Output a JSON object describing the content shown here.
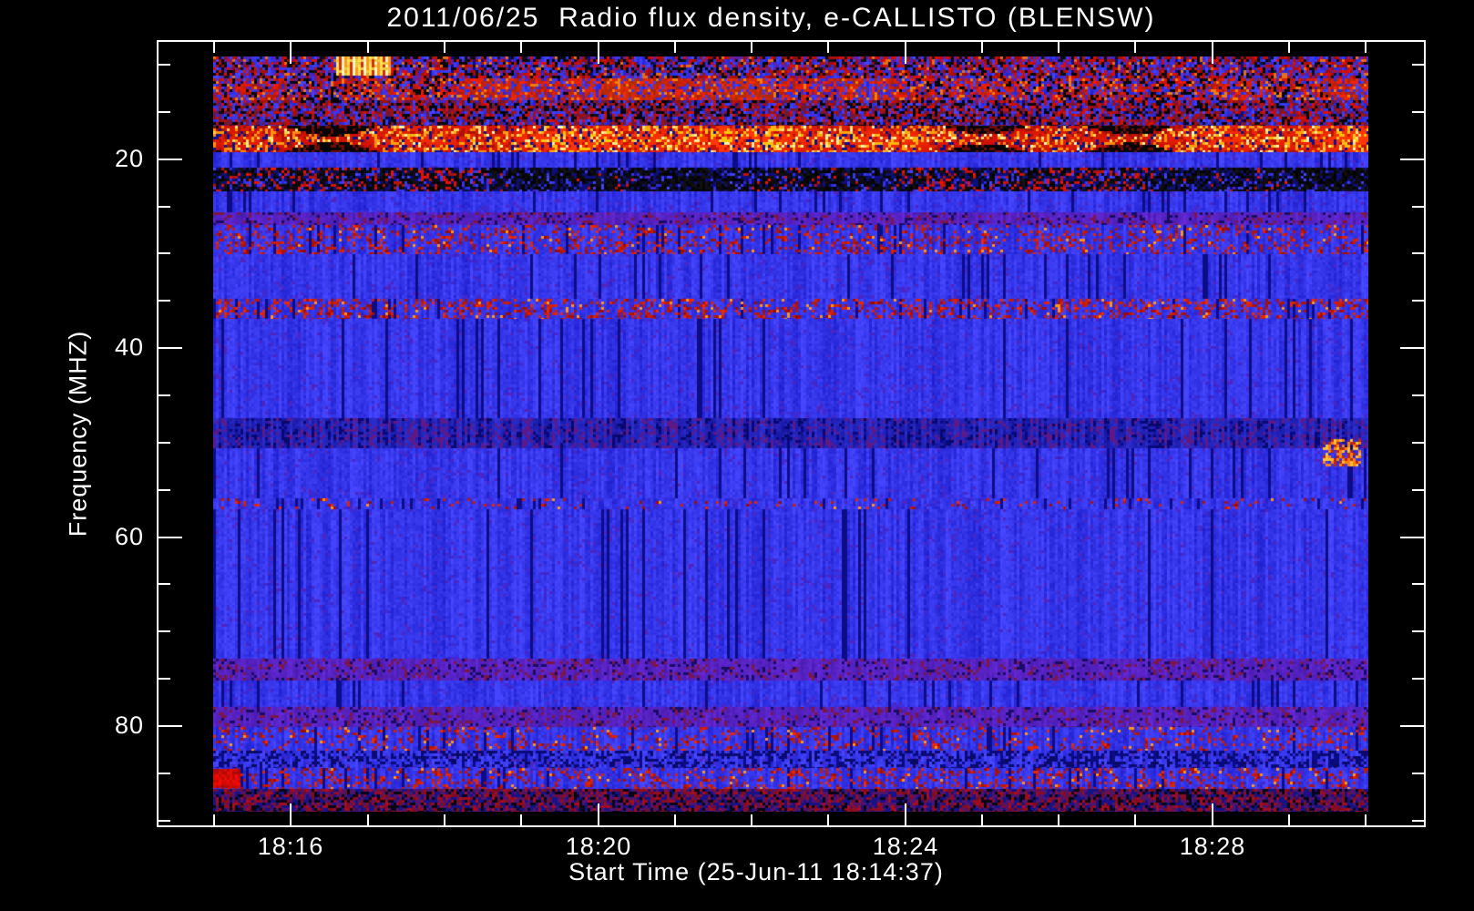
{
  "figure": {
    "title": "2011/06/25  Radio flux density, e-CALLISTO (BLENSW)",
    "background_color": "#000000",
    "axis_color": "#ffffff",
    "text_color": "#ffffff"
  },
  "chart_data": {
    "type": "heatmap",
    "title": "2011/06/25  Radio flux density, e-CALLISTO (BLENSW)",
    "date": "2011/06/25",
    "instrument": "e-CALLISTO",
    "station": "BLENSW",
    "xlabel": "Start Time (25-Jun-11 18:14:37)",
    "ylabel": "Frequency (MHZ)",
    "x_axis": {
      "tick_labels": [
        "18:16",
        "18:20",
        "18:24",
        "18:28"
      ],
      "tick_minutes": [
        1.75,
        5.75,
        9.75,
        13.75
      ],
      "minor_tick_minutes": [
        0.75,
        2.75,
        3.75,
        4.75,
        6.75,
        7.75,
        8.75,
        10.75,
        11.75,
        12.75,
        14.75,
        15.75
      ],
      "range_minutes": [
        0,
        16.53
      ],
      "axis_start_time": "18:14:37",
      "minor_tick_step": "1 minute"
    },
    "y_axis": {
      "tick_labels": [
        "20",
        "40",
        "60",
        "80"
      ],
      "tick_values": [
        20,
        40,
        60,
        80
      ],
      "minor_tick_values": [
        10,
        15,
        25,
        30,
        35,
        45,
        50,
        55,
        65,
        70,
        75,
        85,
        90
      ],
      "range_mhz": [
        7.4,
        90.7
      ],
      "direction": "increasing-downward"
    },
    "image_extent": {
      "t_minutes": [
        0.73,
        15.78
      ],
      "mhz": [
        9.1,
        89.1
      ]
    },
    "grid": "off",
    "legend": "none",
    "palette": {
      "background": "#000000",
      "axis": "#ffffff",
      "quiet_blue": "#2222ee",
      "rfi_red": "#cc1100",
      "strong_orange": "#ff8800",
      "saturated_yellow": "#ffe27a",
      "interference_black": "#000000",
      "mixed_purple": "#5a28c8"
    },
    "bands": [
      {
        "mhz": [
          9.1,
          11.4
        ],
        "type": "mixed"
      },
      {
        "mhz": [
          11.4,
          13.7
        ],
        "type": "redmix"
      },
      {
        "mhz": [
          13.7,
          16.4
        ],
        "type": "mixed2"
      },
      {
        "mhz": [
          16.4,
          19.2
        ],
        "type": "hot"
      },
      {
        "mhz": [
          19.2,
          20.9
        ],
        "type": "blue"
      },
      {
        "mhz": [
          20.9,
          23.4
        ],
        "type": "blackdash"
      },
      {
        "mhz": [
          23.4,
          25.6
        ],
        "type": "blue"
      },
      {
        "mhz": [
          25.6,
          27.0
        ],
        "type": "purple"
      },
      {
        "mhz": [
          27.0,
          30.0
        ],
        "type": "speckle",
        "density": 0.3
      },
      {
        "mhz": [
          30.0,
          34.8
        ],
        "type": "blue"
      },
      {
        "mhz": [
          34.8,
          36.9
        ],
        "type": "speckle",
        "density": 0.4
      },
      {
        "mhz": [
          36.9,
          47.4
        ],
        "type": "blue"
      },
      {
        "mhz": [
          47.4,
          50.6
        ],
        "type": "darkdash"
      },
      {
        "mhz": [
          50.6,
          55.9
        ],
        "type": "blue"
      },
      {
        "mhz": [
          55.9,
          57.1
        ],
        "type": "speckle",
        "density": 0.1
      },
      {
        "mhz": [
          57.1,
          72.9
        ],
        "type": "blue"
      },
      {
        "mhz": [
          72.9,
          75.2
        ],
        "type": "purple"
      },
      {
        "mhz": [
          75.2,
          78.0
        ],
        "type": "blue"
      },
      {
        "mhz": [
          78.0,
          80.1
        ],
        "type": "purple"
      },
      {
        "mhz": [
          80.1,
          82.6
        ],
        "type": "speckle",
        "density": 0.22
      },
      {
        "mhz": [
          82.6,
          84.5
        ],
        "type": "darkdash2"
      },
      {
        "mhz": [
          84.5,
          86.7
        ],
        "type": "speckle",
        "density": 0.3
      },
      {
        "mhz": [
          86.7,
          89.1
        ],
        "type": "bottomdark"
      }
    ],
    "overlays": [
      {
        "name": "bright-comb",
        "t_frac": [
          0.106,
          0.154
        ],
        "mhz": [
          9.1,
          10.9
        ]
      },
      {
        "name": "red-block",
        "t_frac": [
          0.0,
          0.024
        ],
        "mhz": [
          84.6,
          86.5
        ]
      },
      {
        "name": "orange-streaks",
        "t_frac": [
          0.96,
          0.992
        ],
        "mhz": [
          49.6,
          52.4
        ]
      }
    ]
  }
}
